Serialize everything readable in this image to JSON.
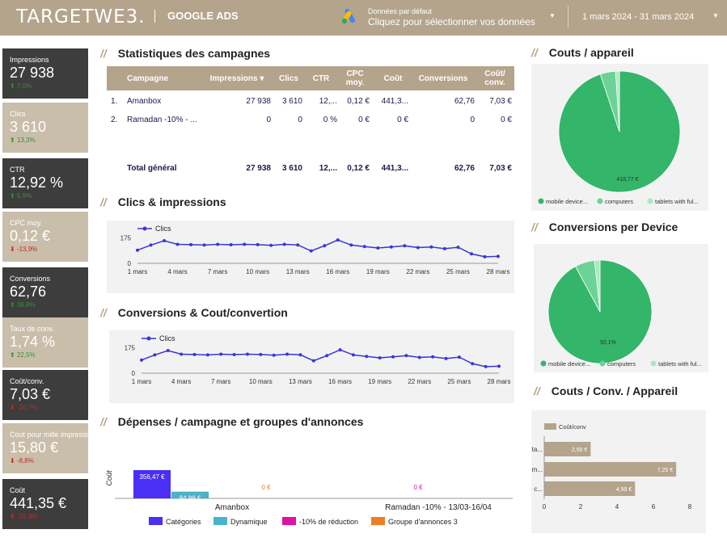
{
  "header": {
    "logo": "TARGETWE3.",
    "title": "GOOGLE ADS",
    "datasource_label": "Données par défaut",
    "datasource_prompt": "Cliquez pour sélectionner vos données",
    "date_range": "1 mars 2024 - 31 mars 2024",
    "accent_color": "#b4a48c"
  },
  "kpis": [
    {
      "label": "Impressions",
      "value": "27 938",
      "change": "7,0%",
      "dir": "up",
      "style": "dark"
    },
    {
      "label": "Clics",
      "value": "3 610",
      "change": "13,3%",
      "dir": "up",
      "style": "light"
    },
    {
      "label": "CTR",
      "value": "12,92 %",
      "change": "5,9%",
      "dir": "up",
      "style": "dark"
    },
    {
      "label": "CPC moy.",
      "value": "0,12 €",
      "change": "-13,9%",
      "dir": "down",
      "style": "light"
    },
    {
      "label": "Conversions",
      "value": "62,76",
      "change": "38,8%",
      "dir": "up",
      "style": "dark"
    },
    {
      "label": "Taux de conv.",
      "value": "1,74 %",
      "change": "22,5%",
      "dir": "up",
      "style": "light"
    },
    {
      "label": "Coût/conv.",
      "value": "7,03 €",
      "change": "-20,7%",
      "dir": "down",
      "style": "dark"
    },
    {
      "label": "Cout pour mille impressions",
      "value": "15,80 €",
      "change": "-8,8%",
      "dir": "down",
      "style": "light"
    },
    {
      "label": "Coût",
      "value": "441,35 €",
      "change": "-15,3%",
      "dir": "down",
      "style": "dark"
    }
  ],
  "sections": {
    "stats": "Statistiques des campagnes",
    "clicks_impr": "Clics & impressions",
    "conv_cost": "Conversions & Cout/convertion",
    "spend": "Dépenses / campagne et groupes d'annonces",
    "cost_device": "Couts / appareil",
    "conv_device": "Conversions per Device",
    "cost_conv_device": "Couts / Conv. / Appareil",
    "slash": "//"
  },
  "table": {
    "headers": [
      "Campagne",
      "Impressions ▾",
      "Clics",
      "CTR",
      "CPC moy.",
      "Coût",
      "Conversions",
      "Coût/ conv."
    ],
    "rows": [
      {
        "num": "1.",
        "cells": [
          "Amanbox",
          "27 938",
          "3 610",
          "12,...",
          "0,12 €",
          "441,3...",
          "62,76",
          "7,03 €"
        ]
      },
      {
        "num": "2.",
        "cells": [
          "Ramadan -10% - ...",
          "0",
          "0",
          "0 %",
          "0 €",
          "0 €",
          "0",
          "0 €"
        ]
      }
    ],
    "total": [
      "Total général",
      "27 938",
      "3 610",
      "12,...",
      "0,12 €",
      "441,3...",
      "62,76",
      "7,03 €"
    ]
  },
  "chart_data": [
    {
      "type": "line",
      "legend": [
        "Clics"
      ],
      "x_ticks": [
        "1 mars",
        "4 mars",
        "7 mars",
        "10 mars",
        "13 mars",
        "16 mars",
        "19 mars",
        "22 mars",
        "25 mars",
        "28 mars",
        "31 mars"
      ],
      "y_ticks": [
        0,
        175
      ],
      "ylim": [
        0,
        260
      ],
      "series": [
        {
          "name": "Clics",
          "color": "#3b35d6",
          "values": [
            90,
            125,
            155,
            130,
            128,
            125,
            130,
            127,
            130,
            128,
            123,
            130,
            126,
            85,
            120,
            160,
            125,
            115,
            105,
            112,
            120,
            108,
            112,
            100,
            110,
            65,
            45,
            48
          ]
        }
      ]
    },
    {
      "type": "line",
      "legend": [
        "Clics"
      ],
      "x_ticks": [
        "1 mars",
        "4 mars",
        "7 mars",
        "10 mars",
        "13 mars",
        "16 mars",
        "19 mars",
        "22 mars",
        "25 mars",
        "28 mars",
        "31 mars"
      ],
      "y_ticks": [
        0,
        175
      ],
      "ylim": [
        0,
        260
      ],
      "series": [
        {
          "name": "Clics",
          "color": "#3b35d6",
          "values": [
            90,
            125,
            155,
            130,
            128,
            125,
            130,
            127,
            130,
            128,
            123,
            130,
            126,
            85,
            120,
            160,
            125,
            115,
            105,
            112,
            120,
            108,
            112,
            100,
            110,
            65,
            45,
            48
          ]
        }
      ]
    },
    {
      "type": "bar",
      "ylabel": "Coût",
      "categories": [
        "Amanbox",
        "Ramadan -10% - 13/03-16/04"
      ],
      "series": [
        {
          "name": "Catégories",
          "color": "#4a2ff5",
          "values": [
            356.47,
            0
          ],
          "labels": [
            "356,47 €",
            ""
          ]
        },
        {
          "name": "Dynamique",
          "color": "#4ab2c9",
          "values": [
            84.88,
            0
          ],
          "labels": [
            "84,88 €",
            ""
          ]
        },
        {
          "name": "-10% de réduction",
          "color": "#e0139f",
          "values": [
            0,
            0
          ],
          "labels": [
            "",
            "0 €"
          ]
        },
        {
          "name": "Groupe d'annonces 3",
          "color": "#ef7d22",
          "values": [
            0,
            0
          ],
          "labels": [
            "0 €",
            ""
          ]
        }
      ]
    },
    {
      "type": "pie",
      "slices": [
        {
          "label": "mobile device...",
          "value": 418.77,
          "color": "#33b56a",
          "shown": "418,77 €"
        },
        {
          "label": "computers",
          "value": 18.0,
          "color": "#6cd295",
          "shown": ""
        },
        {
          "label": "tablets with ful...",
          "value": 4.5,
          "color": "#a9e9c2",
          "shown": ""
        }
      ]
    },
    {
      "type": "pie",
      "slices": [
        {
          "label": "mobile device...",
          "value": 92.1,
          "color": "#33b56a",
          "shown": "92,1%"
        },
        {
          "label": "computers",
          "value": 6.2,
          "color": "#6cd295",
          "shown": ""
        },
        {
          "label": "tablets with ful...",
          "value": 1.7,
          "color": "#a9e9c2",
          "shown": ""
        }
      ]
    },
    {
      "type": "bar",
      "orientation": "horizontal",
      "legend": [
        "Coût/conv"
      ],
      "categories": [
        "ta...",
        "m...",
        "c..."
      ],
      "values": [
        2.55,
        7.25,
        4.99
      ],
      "labels": [
        "2,55 €",
        "7,25 €",
        "4,99 €"
      ],
      "x_ticks": [
        0,
        2,
        4,
        6,
        8
      ],
      "xlim": [
        0,
        8
      ],
      "color": "#b4a48c"
    }
  ]
}
